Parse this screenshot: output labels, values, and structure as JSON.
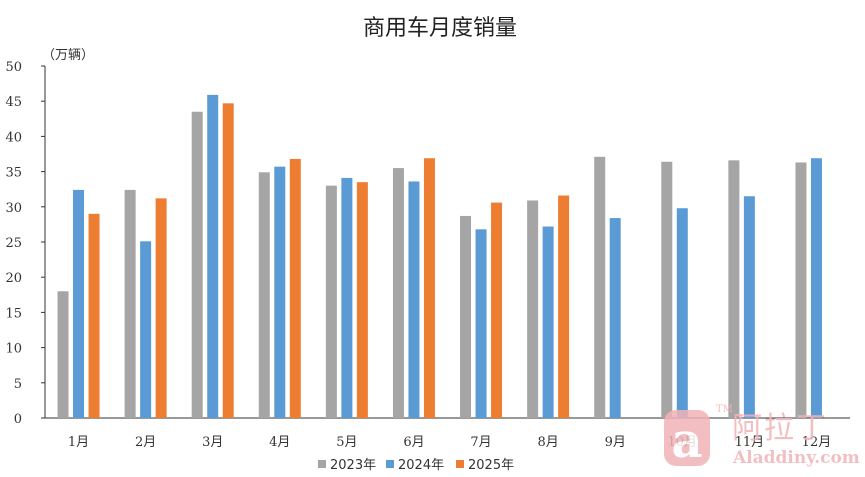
{
  "chart_data": {
    "type": "bar",
    "title": "商用车月度销量",
    "ylabel": "（万辆）",
    "xlabel": "",
    "categories": [
      "1月",
      "2月",
      "3月",
      "4月",
      "5月",
      "6月",
      "7月",
      "8月",
      "9月",
      "10月",
      "11月",
      "12月"
    ],
    "series": [
      {
        "name": "2023年",
        "color": "#a5a5a5",
        "values": [
          18.0,
          32.4,
          43.5,
          34.9,
          33.0,
          35.5,
          28.7,
          30.9,
          37.1,
          36.4,
          36.6,
          36.3
        ]
      },
      {
        "name": "2024年",
        "color": "#5b9bd5",
        "values": [
          32.4,
          25.1,
          45.9,
          35.7,
          34.1,
          33.6,
          26.8,
          27.2,
          28.4,
          29.8,
          31.5,
          36.9
        ]
      },
      {
        "name": "2025年",
        "color": "#ed7d31",
        "values": [
          29.0,
          31.2,
          44.7,
          36.8,
          33.5,
          36.9,
          30.6,
          31.6,
          null,
          null,
          null,
          null
        ]
      }
    ],
    "ylim": [
      0,
      50
    ],
    "yticks": [
      0,
      5,
      10,
      15,
      20,
      25,
      30,
      35,
      40,
      45,
      50
    ],
    "grid": false,
    "legend": "bottom"
  },
  "watermark": {
    "logo_glyph": "a",
    "tm": "TM",
    "brand": "阿拉丁",
    "url": "Aladdiny.com",
    "color": "#f2b3b8"
  }
}
